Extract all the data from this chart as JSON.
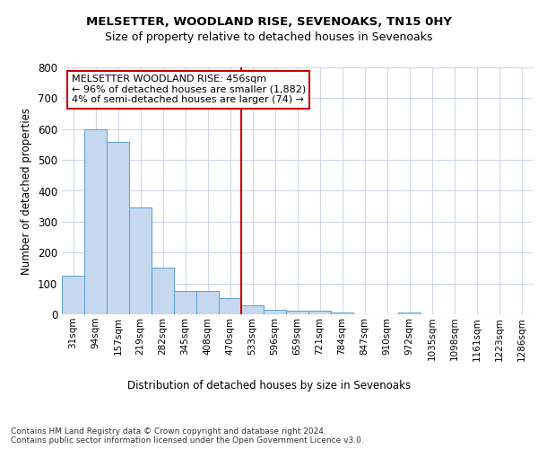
{
  "title1": "MELSETTER, WOODLAND RISE, SEVENOAKS, TN15 0HY",
  "title2": "Size of property relative to detached houses in Sevenoaks",
  "xlabel": "Distribution of detached houses by size in Sevenoaks",
  "ylabel": "Number of detached properties",
  "categories": [
    "31sqm",
    "94sqm",
    "157sqm",
    "219sqm",
    "282sqm",
    "345sqm",
    "408sqm",
    "470sqm",
    "533sqm",
    "596sqm",
    "659sqm",
    "721sqm",
    "784sqm",
    "847sqm",
    "910sqm",
    "972sqm",
    "1035sqm",
    "1098sqm",
    "1161sqm",
    "1223sqm",
    "1286sqm"
  ],
  "values": [
    125,
    600,
    558,
    347,
    150,
    77,
    77,
    52,
    30,
    14,
    12,
    12,
    6,
    0,
    0,
    6,
    0,
    0,
    0,
    0,
    0
  ],
  "bar_color": "#c5d8f0",
  "bar_edge_color": "#5a9fd4",
  "ref_line_index": 7,
  "annotation_text": "MELSETTER WOODLAND RISE: 456sqm\n← 96% of detached houses are smaller (1,882)\n4% of semi-detached houses are larger (74) →",
  "annotation_box_color": "#ffffff",
  "annotation_box_edge": "#cc0000",
  "ref_line_color": "#cc0000",
  "ylim": [
    0,
    800
  ],
  "yticks": [
    0,
    100,
    200,
    300,
    400,
    500,
    600,
    700,
    800
  ],
  "footer": "Contains HM Land Registry data © Crown copyright and database right 2024.\nContains public sector information licensed under the Open Government Licence v3.0.",
  "bg_color": "#ffffff",
  "grid_color": "#d0d8e8"
}
